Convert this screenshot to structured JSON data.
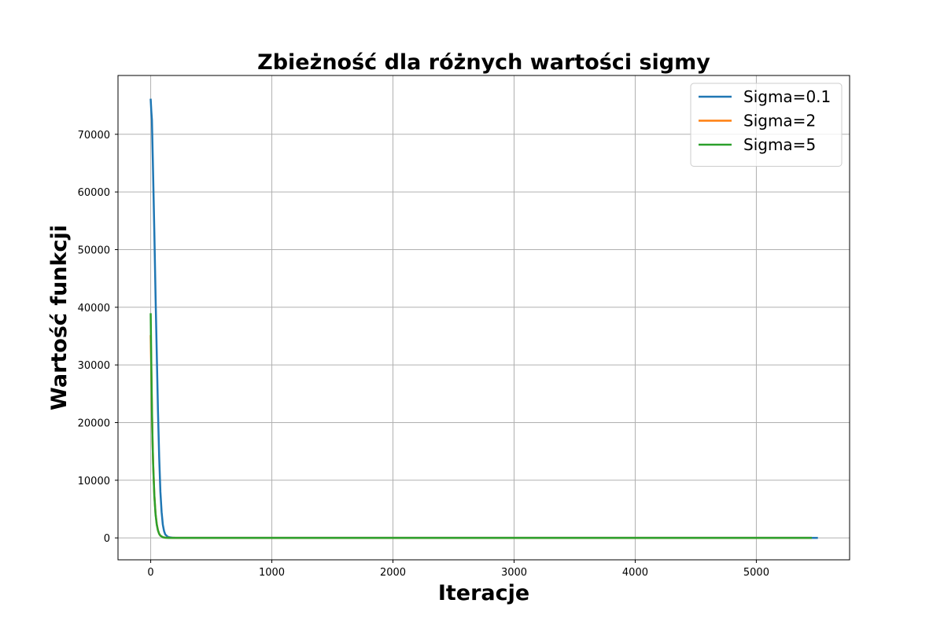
{
  "chart_data": {
    "type": "line",
    "title": "Zbieżność dla różnych wartości sigmy",
    "xlabel": "Iteracje",
    "ylabel": "Wartość funkcji",
    "xlim": [
      -270,
      5770
    ],
    "ylim": [
      -3800,
      80200
    ],
    "xticks": [
      0,
      1000,
      2000,
      3000,
      4000,
      5000
    ],
    "yticks": [
      0,
      10000,
      20000,
      30000,
      40000,
      50000,
      60000,
      70000
    ],
    "grid": true,
    "legend_position": "top-right",
    "series": [
      {
        "name": "Sigma=0.1",
        "color": "#1f77b4",
        "x": [
          0,
          5,
          10,
          20,
          30,
          40,
          50,
          60,
          70,
          80,
          90,
          100,
          110,
          120,
          140,
          160,
          180,
          200,
          250,
          300,
          500,
          1000,
          2000,
          3000,
          4000,
          5000,
          5500
        ],
        "y": [
          76000,
          74000,
          72500,
          63000,
          53000,
          42000,
          32000,
          22000,
          14000,
          8000,
          4500,
          2300,
          1200,
          600,
          200,
          80,
          30,
          10,
          5,
          3,
          2,
          1,
          1,
          1,
          1,
          1,
          1
        ]
      },
      {
        "name": "Sigma=2",
        "color": "#ff7f0e",
        "x": [
          0,
          5,
          10,
          15,
          20,
          30,
          40,
          50,
          60,
          70,
          80,
          100,
          120,
          150,
          200,
          300,
          500,
          1000,
          2000,
          3000,
          4000,
          5000,
          5450
        ],
        "y": [
          35000,
          29000,
          22000,
          17000,
          13000,
          7500,
          4200,
          2400,
          1300,
          700,
          400,
          120,
          40,
          10,
          3,
          1,
          1,
          1,
          1,
          1,
          1,
          1,
          1
        ]
      },
      {
        "name": "Sigma=5",
        "color": "#2ca02c",
        "x": [
          0,
          5,
          10,
          15,
          20,
          30,
          40,
          50,
          60,
          70,
          80,
          100,
          120,
          150,
          200,
          300,
          500,
          1000,
          2000,
          3000,
          4000,
          5000,
          5450
        ],
        "y": [
          38800,
          30000,
          22500,
          17000,
          12800,
          7300,
          4100,
          2300,
          1300,
          700,
          380,
          110,
          35,
          9,
          2,
          1,
          1,
          1,
          1,
          1,
          1,
          1,
          1
        ]
      }
    ]
  }
}
